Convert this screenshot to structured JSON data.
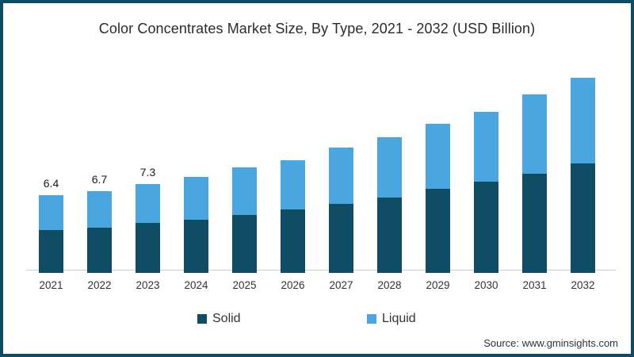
{
  "frame": {
    "border_color": "#0E4C63",
    "background_color": "#FFFFFF"
  },
  "chart_data": {
    "type": "bar",
    "stacked": true,
    "title": "Color Concentrates Market Size, By Type, 2021 - 2032 (USD Billion)",
    "categories": [
      "2021",
      "2022",
      "2023",
      "2024",
      "2025",
      "2026",
      "2027",
      "2028",
      "2029",
      "2030",
      "2031",
      "2032"
    ],
    "series": [
      {
        "name": "Solid",
        "color": "#0E4D64",
        "values": [
          3.5,
          3.7,
          4.1,
          4.4,
          4.8,
          5.2,
          5.7,
          6.2,
          6.9,
          7.5,
          8.2,
          9.0
        ]
      },
      {
        "name": "Liquid",
        "color": "#49A6DF",
        "values": [
          2.9,
          3.0,
          3.2,
          3.5,
          3.9,
          4.1,
          4.6,
          5.0,
          5.4,
          5.8,
          6.5,
          7.1
        ]
      }
    ],
    "totals": [
      6.4,
      6.7,
      7.3,
      7.9,
      8.7,
      9.3,
      10.3,
      11.2,
      12.3,
      13.3,
      14.7,
      16.1
    ],
    "bar_value_labels": [
      "6.4",
      "6.7",
      "7.3",
      null,
      null,
      null,
      null,
      null,
      null,
      null,
      null,
      null
    ],
    "xlabel": "",
    "ylabel": "",
    "ylim": [
      0,
      16.5
    ],
    "grid": false,
    "y_axis_visible": false,
    "legend_position": "bottom",
    "axis_line_color": "#CCCCCC"
  },
  "source": {
    "text": "Source: www.gminsights.com"
  }
}
